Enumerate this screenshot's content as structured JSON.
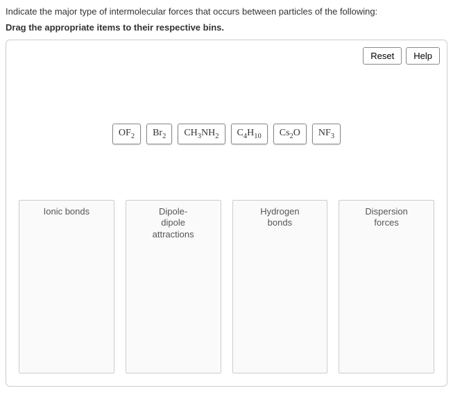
{
  "question": "Indicate the major type of intermolecular forces that occurs between particles of the following:",
  "instruction": "Drag the appropriate items to their respective bins.",
  "buttons": {
    "reset": "Reset",
    "help": "Help"
  },
  "items": [
    {
      "formula_html": "OF<sub>2</sub>",
      "name": "OF2"
    },
    {
      "formula_html": "Br<sub>2</sub>",
      "name": "Br2"
    },
    {
      "formula_html": "CH<sub>3</sub>NH<sub>2</sub>",
      "name": "CH3NH2"
    },
    {
      "formula_html": "C<sub>4</sub>H<sub>10</sub>",
      "name": "C4H10"
    },
    {
      "formula_html": "Cs<sub>2</sub>O",
      "name": "Cs2O"
    },
    {
      "formula_html": "NF<sub>3</sub>",
      "name": "NF3"
    }
  ],
  "bins": [
    {
      "label": "Ionic bonds"
    },
    {
      "label": "Dipole-\ndipole\nattractions"
    },
    {
      "label": "Hydrogen\nbonds"
    },
    {
      "label": "Dispersion\nforces"
    }
  ],
  "colors": {
    "border": "#cccccc",
    "item_border": "#888888",
    "text": "#333333",
    "bin_bg": "#fafafa"
  }
}
